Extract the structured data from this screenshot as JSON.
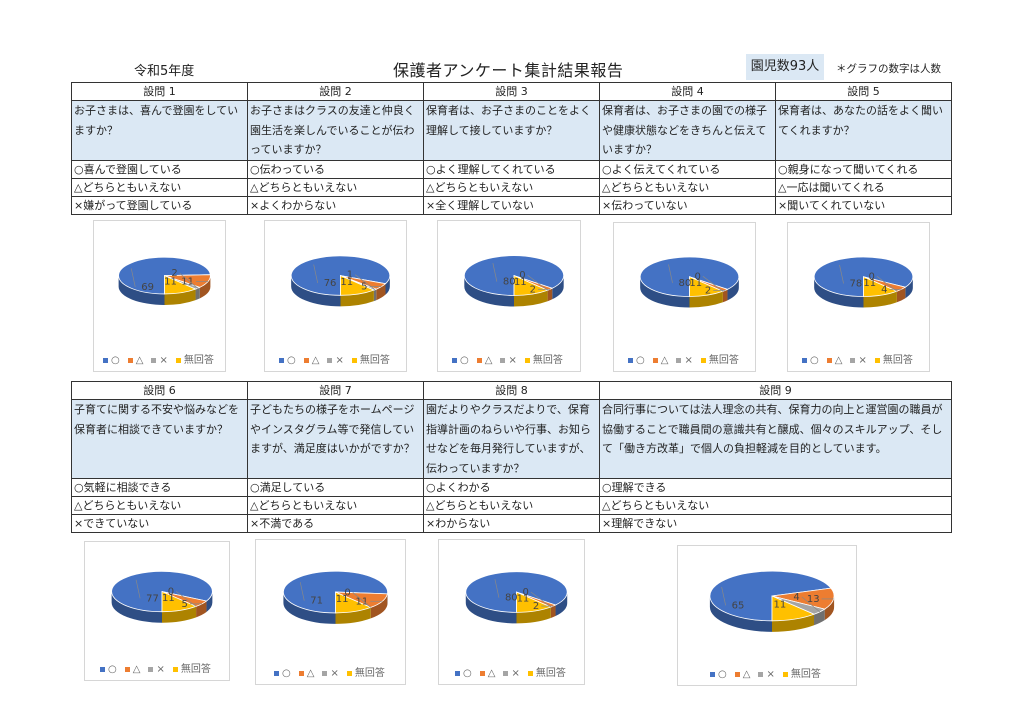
{
  "header": {
    "year": "令和5年度",
    "title": "保護者アンケート集計結果報告",
    "count": "園児数93人",
    "note": "＊グラフの数字は人数"
  },
  "legend": [
    "○",
    "△",
    "×",
    "無回答"
  ],
  "colors": {
    "o": "#4472c4",
    "t": "#ed7d31",
    "x": "#a5a5a5",
    "n": "#ffc000"
  },
  "questions": [
    {
      "title": "設問 1",
      "text": "お子さまは、喜んで登園をしていますか？",
      "options": [
        "○喜んで登園している",
        "△どちらともいえない",
        "×嫌がって登園している"
      ]
    },
    {
      "title": "設問 2",
      "text": "お子さまはクラスの友達と仲良く園生活を楽しんでいることが伝わっていますか？",
      "options": [
        "○伝わっている",
        "△どちらともいえない",
        "×よくわからない"
      ]
    },
    {
      "title": "設問 3",
      "text": "保育者は、お子さまのことをよく理解して接していますか？",
      "options": [
        "○よく理解してくれている",
        "△どちらともいえない",
        "×全く理解していない"
      ]
    },
    {
      "title": "設問 4",
      "text": "保育者は、お子さまの園での様子や健康状態などをきちんと伝えていますか？",
      "options": [
        "○よく伝えてくれている",
        "△どちらともいえない",
        "×伝わっていない"
      ]
    },
    {
      "title": "設問 5",
      "text": "保育者は、あなたの話をよく聞いてくれますか？",
      "options": [
        "○親身になって聞いてくれる",
        "△一応は聞いてくれる",
        "×聞いてくれていない"
      ]
    },
    {
      "title": "設問 6",
      "text": "子育てに関する不安や悩みなどを保育者に相談できていますか？",
      "options": [
        "○気軽に相談できる",
        "△どちらともいえない",
        "×できていない"
      ]
    },
    {
      "title": "設問 7",
      "text": "子どもたちの様子をホームページやインスタグラム等で発信していますが、満足度はいかがですか？",
      "options": [
        "○満足している",
        "△どちらともいえない",
        "×不満である"
      ]
    },
    {
      "title": "設問 8",
      "text": "園だよりやクラスだよりで、保育指導計画のねらいや行事、お知らせなどを毎月発行していますが、伝わっていますか？",
      "options": [
        "○よくわかる",
        "△どちらともいえない",
        "×わからない"
      ]
    },
    {
      "title": "設問 9",
      "text": "合同行事については法人理念の共有、保育力の向上と運営園の職員が協働することで職員間の意識共有と醸成、個々のスキルアップ、そして「働き方改革」で個人の負担軽減を目的としています。",
      "options": [
        "○理解できる",
        "△どちらともいえない",
        "×理解できない"
      ]
    }
  ],
  "chart_data": [
    {
      "type": "pie",
      "question": "設問 1",
      "categories": [
        "○",
        "△",
        "×",
        "無回答"
      ],
      "values": [
        69,
        11,
        2,
        11
      ]
    },
    {
      "type": "pie",
      "question": "設問 2",
      "categories": [
        "○",
        "△",
        "×",
        "無回答"
      ],
      "values": [
        76,
        5,
        1,
        11
      ]
    },
    {
      "type": "pie",
      "question": "設問 3",
      "categories": [
        "○",
        "△",
        "×",
        "無回答"
      ],
      "values": [
        80,
        2,
        0,
        11
      ]
    },
    {
      "type": "pie",
      "question": "設問 4",
      "categories": [
        "○",
        "△",
        "×",
        "無回答"
      ],
      "values": [
        80,
        2,
        0,
        11
      ]
    },
    {
      "type": "pie",
      "question": "設問 5",
      "categories": [
        "○",
        "△",
        "×",
        "無回答"
      ],
      "values": [
        78,
        4,
        0,
        11
      ]
    },
    {
      "type": "pie",
      "question": "設問 6",
      "categories": [
        "○",
        "△",
        "×",
        "無回答"
      ],
      "values": [
        77,
        5,
        0,
        11
      ]
    },
    {
      "type": "pie",
      "question": "設問 7",
      "categories": [
        "○",
        "△",
        "×",
        "無回答"
      ],
      "values": [
        71,
        11,
        0,
        11
      ]
    },
    {
      "type": "pie",
      "question": "設問 8",
      "categories": [
        "○",
        "△",
        "×",
        "無回答"
      ],
      "values": [
        80,
        2,
        0,
        11
      ]
    },
    {
      "type": "pie",
      "question": "設問 9",
      "categories": [
        "○",
        "△",
        "×",
        "無回答"
      ],
      "values": [
        65,
        13,
        4,
        11
      ]
    }
  ]
}
